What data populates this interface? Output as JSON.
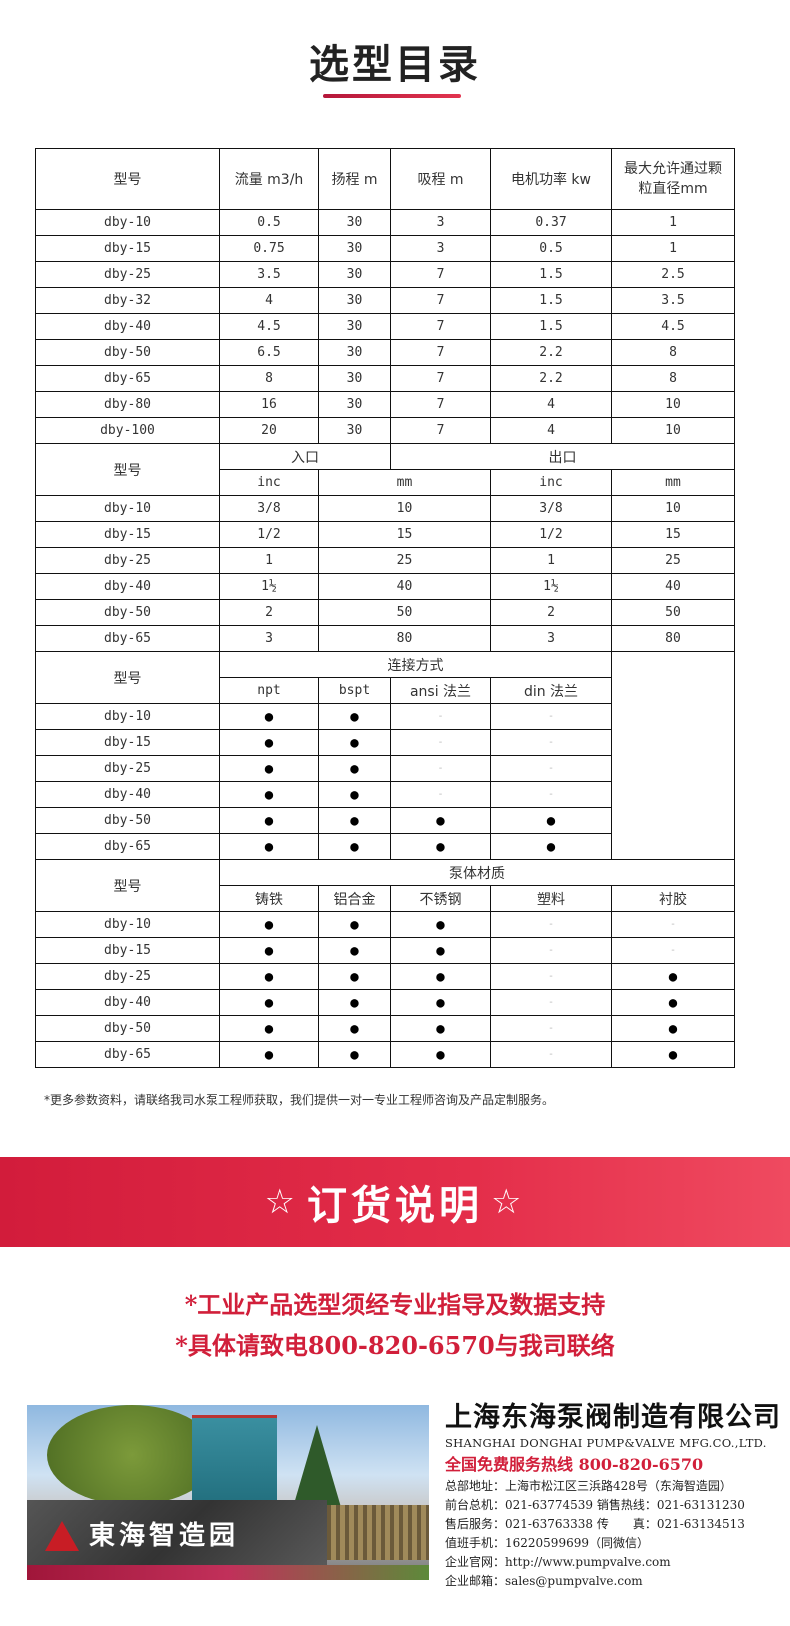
{
  "title": "选型目录",
  "colors": {
    "accent": "#d11f3a",
    "banner": "#e42e4a"
  },
  "perf": {
    "headers": [
      "型号",
      "流量 m3/h",
      "扬程 m",
      "吸程 m",
      "电机功率 kw",
      "最大允许通过颗粒直径mm"
    ],
    "rows": [
      [
        "dby-10",
        "0.5",
        "30",
        "3",
        "0.37",
        "1"
      ],
      [
        "dby-15",
        "0.75",
        "30",
        "3",
        "0.5",
        "1"
      ],
      [
        "dby-25",
        "3.5",
        "30",
        "7",
        "1.5",
        "2.5"
      ],
      [
        "dby-32",
        "4",
        "30",
        "7",
        "1.5",
        "3.5"
      ],
      [
        "dby-40",
        "4.5",
        "30",
        "7",
        "1.5",
        "4.5"
      ],
      [
        "dby-50",
        "6.5",
        "30",
        "7",
        "2.2",
        "8"
      ],
      [
        "dby-65",
        "8",
        "30",
        "7",
        "2.2",
        "8"
      ],
      [
        "dby-80",
        "16",
        "30",
        "7",
        "4",
        "10"
      ],
      [
        "dby-100",
        "20",
        "30",
        "7",
        "4",
        "10"
      ]
    ]
  },
  "ports": {
    "model": "型号",
    "inlet": "入口",
    "outlet": "出口",
    "sub": [
      "inc",
      "mm",
      "inc",
      "mm"
    ],
    "rows": [
      [
        "dby-10",
        "3/8",
        "10",
        "3/8",
        "10"
      ],
      [
        "dby-15",
        "1/2",
        "15",
        "1/2",
        "15"
      ],
      [
        "dby-25",
        "1",
        "25",
        "1",
        "25"
      ],
      [
        "dby-40",
        "1½",
        "40",
        "1½",
        "40"
      ],
      [
        "dby-50",
        "2",
        "50",
        "2",
        "50"
      ],
      [
        "dby-65",
        "3",
        "80",
        "3",
        "80"
      ]
    ]
  },
  "connection": {
    "model": "型号",
    "group": "连接方式",
    "sub": [
      "npt",
      "bspt",
      "ansi 法兰",
      "din 法兰"
    ],
    "rows": [
      [
        "dby-10",
        "●",
        "●",
        "-",
        "-"
      ],
      [
        "dby-15",
        "●",
        "●",
        "-",
        "-"
      ],
      [
        "dby-25",
        "●",
        "●",
        "-",
        "-"
      ],
      [
        "dby-40",
        "●",
        "●",
        "-",
        "-"
      ],
      [
        "dby-50",
        "●",
        "●",
        "●",
        "●"
      ],
      [
        "dby-65",
        "●",
        "●",
        "●",
        "●"
      ]
    ]
  },
  "material": {
    "model": "型号",
    "group": "泵体材质",
    "sub": [
      "铸铁",
      "铝合金",
      "不锈钢",
      "塑料",
      "衬胶"
    ],
    "rows": [
      [
        "dby-10",
        "●",
        "●",
        "●",
        "-",
        "-"
      ],
      [
        "dby-15",
        "●",
        "●",
        "●",
        "-",
        "-"
      ],
      [
        "dby-25",
        "●",
        "●",
        "●",
        "-",
        "●"
      ],
      [
        "dby-40",
        "●",
        "●",
        "●",
        "-",
        "●"
      ],
      [
        "dby-50",
        "●",
        "●",
        "●",
        "-",
        "●"
      ],
      [
        "dby-65",
        "●",
        "●",
        "●",
        "-",
        "●"
      ]
    ]
  },
  "note": "*更多参数资料，请联络我司水泵工程师获取，我们提供一对一专业工程师咨询及产品定制服务。",
  "banner": {
    "star": "☆",
    "title": "订货说明"
  },
  "order_lines": [
    "*工业产品选型须经专业指导及数据支持",
    "*具体请致电800-820-6570与我司联络"
  ],
  "photo": {
    "sign": "東海智造园"
  },
  "company": {
    "name": "上海东海泵阀制造有限公司",
    "name_en": "SHANGHAI DONGHAI PUMP&VALVE MFG.CO.,LTD.",
    "hotline": "全国免费服务热线  800-820-6570",
    "lines": [
      "总部地址：上海市松江区三浜路428号（东海智造园）",
      "前台总机：021-63774539   销售热线：021-63131230",
      "售后服务：021-63763338   传　　真：021-63134513",
      "值班手机：16220599699（同微信）",
      "企业官网：http://www.pumpvalve.com",
      "企业邮箱：sales@pumpvalve.com"
    ]
  }
}
